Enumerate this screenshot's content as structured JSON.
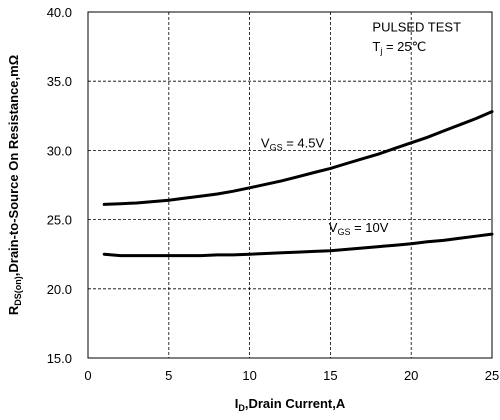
{
  "chart_data": {
    "type": "line",
    "title": "",
    "xlabel": {
      "main": "I",
      "sub": "D",
      "rest": ",Drain Current,A"
    },
    "ylabel": {
      "main": "R",
      "sub": "DS(on)",
      "rest": ",Drain-to-Source On Resistance,mΩ"
    },
    "xlim": [
      0,
      25
    ],
    "ylim": [
      15,
      40
    ],
    "xticks": [
      0,
      5,
      10,
      15,
      20,
      25
    ],
    "yticks": [
      15.0,
      20.0,
      25.0,
      30.0,
      35.0,
      40.0
    ],
    "ytick_labels": [
      "15.0",
      "20.0",
      "25.0",
      "30.0",
      "35.0",
      "40.0"
    ],
    "grid": true,
    "annotation": {
      "line1": "PULSED TEST",
      "line2_main": "T",
      "line2_sub": "j",
      "line2_rest": " = 25℃"
    },
    "series": [
      {
        "name": "VGS = 4.5V",
        "label_main": "V",
        "label_sub": "GS",
        "label_rest": " = 4.5V",
        "x": [
          1,
          2,
          3,
          4,
          5,
          6,
          7,
          8,
          9,
          10,
          11,
          12,
          13,
          14,
          15,
          16,
          17,
          18,
          19,
          20,
          21,
          22,
          23,
          24,
          25
        ],
        "y": [
          26.1,
          26.15,
          26.2,
          26.3,
          26.4,
          26.55,
          26.7,
          26.85,
          27.05,
          27.3,
          27.55,
          27.8,
          28.1,
          28.4,
          28.7,
          29.05,
          29.4,
          29.75,
          30.15,
          30.55,
          30.95,
          31.4,
          31.85,
          32.3,
          32.8
        ]
      },
      {
        "name": "VGS = 10V",
        "label_main": "V",
        "label_sub": "GS",
        "label_rest": " = 10V",
        "x": [
          1,
          2,
          3,
          4,
          5,
          6,
          7,
          8,
          9,
          10,
          11,
          12,
          13,
          14,
          15,
          16,
          17,
          18,
          19,
          20,
          21,
          22,
          23,
          24,
          25
        ],
        "y": [
          22.5,
          22.4,
          22.4,
          22.4,
          22.4,
          22.4,
          22.4,
          22.45,
          22.45,
          22.5,
          22.55,
          22.6,
          22.65,
          22.7,
          22.75,
          22.85,
          22.95,
          23.05,
          23.15,
          23.25,
          23.4,
          23.5,
          23.65,
          23.8,
          23.95
        ]
      }
    ]
  }
}
